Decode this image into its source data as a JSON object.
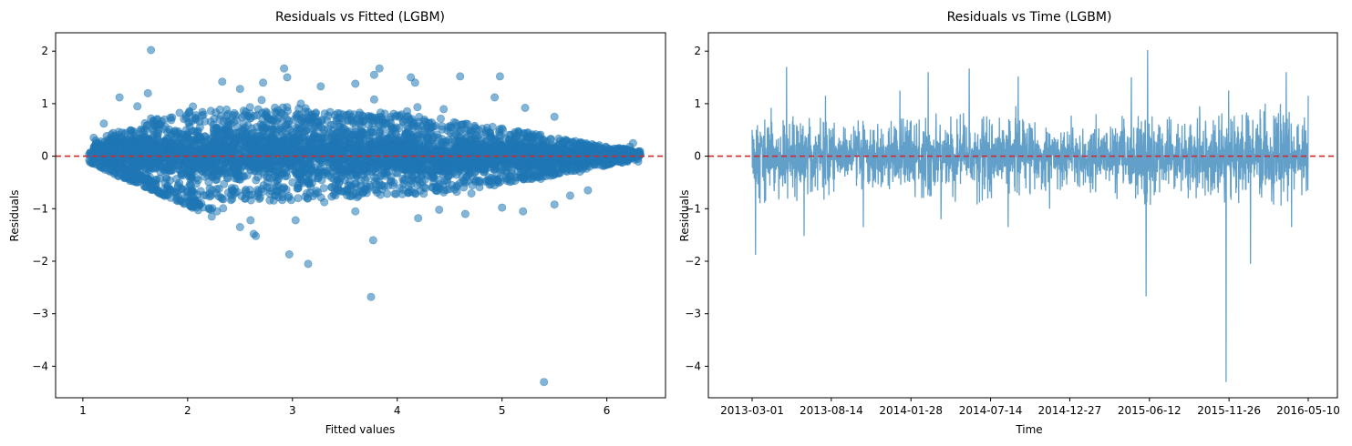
{
  "chart_data": [
    {
      "type": "scatter",
      "title": "Residuals vs Fitted (LGBM)",
      "xlabel": "Fitted values",
      "ylabel": "Residuals",
      "xlim": [
        0.74,
        6.56
      ],
      "ylim": [
        -4.6,
        2.35
      ],
      "xticks": [
        1,
        2,
        3,
        4,
        5,
        6
      ],
      "yticks": [
        2,
        1,
        0,
        -1,
        -2,
        -3,
        -4
      ],
      "marker_color": "#1f77b4",
      "marker_alpha": 0.55,
      "reference_line": {
        "y": 0,
        "color": "#d62728",
        "style": "dashed"
      },
      "grid": false,
      "points": [
        [
          1.65,
          2.02
        ],
        [
          1.62,
          1.2
        ],
        [
          1.35,
          1.12
        ],
        [
          2.33,
          1.42
        ],
        [
          2.72,
          1.4
        ],
        [
          2.92,
          1.67
        ],
        [
          2.95,
          1.5
        ],
        [
          3.27,
          1.33
        ],
        [
          3.6,
          1.38
        ],
        [
          3.83,
          1.67
        ],
        [
          3.78,
          1.55
        ],
        [
          4.13,
          1.5
        ],
        [
          4.17,
          1.4
        ],
        [
          4.6,
          1.52
        ],
        [
          4.98,
          1.52
        ],
        [
          4.93,
          1.12
        ],
        [
          3.78,
          1.08
        ],
        [
          3.08,
          1.0
        ],
        [
          2.5,
          1.28
        ],
        [
          1.52,
          0.95
        ],
        [
          1.2,
          0.62
        ],
        [
          5.22,
          0.92
        ],
        [
          5.5,
          0.75
        ],
        [
          1.4,
          -0.22
        ],
        [
          2.3,
          -0.62
        ],
        [
          2.6,
          -1.22
        ],
        [
          3.03,
          -1.22
        ],
        [
          2.97,
          -1.87
        ],
        [
          3.15,
          -2.05
        ],
        [
          3.77,
          -1.6
        ],
        [
          3.75,
          -2.68
        ],
        [
          5.4,
          -4.3
        ],
        [
          4.2,
          -1.18
        ],
        [
          4.65,
          -1.1
        ],
        [
          5.0,
          -0.98
        ],
        [
          5.2,
          -1.05
        ],
        [
          5.5,
          -0.92
        ],
        [
          5.82,
          -0.65
        ],
        [
          5.65,
          -0.75
        ],
        [
          4.4,
          -1.02
        ],
        [
          3.6,
          -1.05
        ],
        [
          2.5,
          -1.35
        ],
        [
          2.63,
          -1.48
        ],
        [
          2.65,
          -1.52
        ],
        [
          2.23,
          -1.15
        ],
        [
          1.78,
          0.7
        ],
        [
          2.08,
          0.78
        ],
        [
          6.25,
          0.25
        ],
        [
          6.3,
          -0.1
        ],
        [
          6.22,
          0.18
        ]
      ],
      "bands": [
        {
          "x_from": 1.0,
          "x_to": 2.32,
          "slope": -0.9
        },
        {
          "x_from": 1.05,
          "x_to": 2.1,
          "slope": -0.87,
          "offset": -0.15
        }
      ],
      "cloud": [
        {
          "x": 1.2,
          "low": -0.1,
          "high": 0.32
        },
        {
          "x": 1.6,
          "low": -0.42,
          "high": 0.55
        },
        {
          "x": 2.0,
          "low": -0.62,
          "high": 0.72
        },
        {
          "x": 2.5,
          "low": -0.72,
          "high": 0.78
        },
        {
          "x": 3.0,
          "low": -0.7,
          "high": 0.78
        },
        {
          "x": 3.5,
          "low": -0.68,
          "high": 0.72
        },
        {
          "x": 4.0,
          "low": -0.62,
          "high": 0.68
        },
        {
          "x": 4.5,
          "low": -0.55,
          "high": 0.55
        },
        {
          "x": 5.0,
          "low": -0.45,
          "high": 0.45
        },
        {
          "x": 5.5,
          "low": -0.3,
          "high": 0.3
        },
        {
          "x": 6.0,
          "low": -0.15,
          "high": 0.15
        },
        {
          "x": 6.3,
          "low": -0.06,
          "high": 0.1
        }
      ]
    },
    {
      "type": "line",
      "title": "Residuals vs Time (LGBM)",
      "xlabel": "Time",
      "ylabel": "Residuals",
      "ylim": [
        -4.6,
        2.35
      ],
      "xticks": [
        "2013-03-01",
        "2013-08-14",
        "2014-01-28",
        "2014-07-14",
        "2014-12-27",
        "2015-06-12",
        "2015-11-26",
        "2016-05-10"
      ],
      "yticks": [
        2,
        1,
        0,
        -1,
        -2,
        -3,
        -4
      ],
      "line_color": "#1f77b4",
      "line_alpha": 0.7,
      "reference_line": {
        "y": 0,
        "color": "#d62728",
        "style": "dashed"
      },
      "grid": false,
      "spikes": [
        {
          "x": "2013-03-01",
          "y": 0.5
        },
        {
          "x": "2013-03-08",
          "y": -1.88
        },
        {
          "x": "2013-04-10",
          "y": 0.92
        },
        {
          "x": "2013-05-12",
          "y": 1.7
        },
        {
          "x": "2013-06-18",
          "y": -1.52
        },
        {
          "x": "2013-08-02",
          "y": 1.15
        },
        {
          "x": "2013-10-20",
          "y": -1.35
        },
        {
          "x": "2014-01-05",
          "y": 1.25
        },
        {
          "x": "2014-03-05",
          "y": 1.6
        },
        {
          "x": "2014-04-01",
          "y": -1.2
        },
        {
          "x": "2014-05-30",
          "y": 1.67
        },
        {
          "x": "2014-07-16",
          "y": -0.8
        },
        {
          "x": "2014-08-20",
          "y": -1.35
        },
        {
          "x": "2014-09-10",
          "y": 1.52
        },
        {
          "x": "2014-11-15",
          "y": -1.0
        },
        {
          "x": "2015-02-20",
          "y": 0.8
        },
        {
          "x": "2015-05-05",
          "y": 1.5
        },
        {
          "x": "2015-06-05",
          "y": -2.67
        },
        {
          "x": "2015-06-08",
          "y": 2.02
        },
        {
          "x": "2015-09-25",
          "y": 0.95
        },
        {
          "x": "2015-11-20",
          "y": -4.3
        },
        {
          "x": "2015-11-25",
          "y": 1.25
        },
        {
          "x": "2016-01-10",
          "y": -2.05
        },
        {
          "x": "2016-02-10",
          "y": 1.0
        },
        {
          "x": "2016-03-25",
          "y": 1.6
        },
        {
          "x": "2016-04-05",
          "y": -1.35
        },
        {
          "x": "2016-05-10",
          "y": 1.15
        }
      ],
      "envelope": [
        {
          "x": "2013-03-01",
          "low": -0.7,
          "high": 0.6
        },
        {
          "x": "2013-06-01",
          "low": -0.8,
          "high": 0.65
        },
        {
          "x": "2013-09-01",
          "low": -0.55,
          "high": 0.5
        },
        {
          "x": "2013-12-01",
          "low": -0.6,
          "high": 0.55
        },
        {
          "x": "2014-03-01",
          "low": -0.7,
          "high": 0.6
        },
        {
          "x": "2014-06-01",
          "low": -0.75,
          "high": 0.65
        },
        {
          "x": "2014-09-01",
          "low": -0.6,
          "high": 0.55
        },
        {
          "x": "2014-12-01",
          "low": -0.5,
          "high": 0.45
        },
        {
          "x": "2015-03-01",
          "low": -0.55,
          "high": 0.5
        },
        {
          "x": "2015-06-01",
          "low": -0.75,
          "high": 0.7
        },
        {
          "x": "2015-09-01",
          "low": -0.65,
          "high": 0.6
        },
        {
          "x": "2015-12-01",
          "low": -0.7,
          "high": 0.65
        },
        {
          "x": "2016-03-01",
          "low": -0.75,
          "high": 0.7
        },
        {
          "x": "2016-05-10",
          "low": -0.7,
          "high": 0.6
        }
      ]
    }
  ]
}
